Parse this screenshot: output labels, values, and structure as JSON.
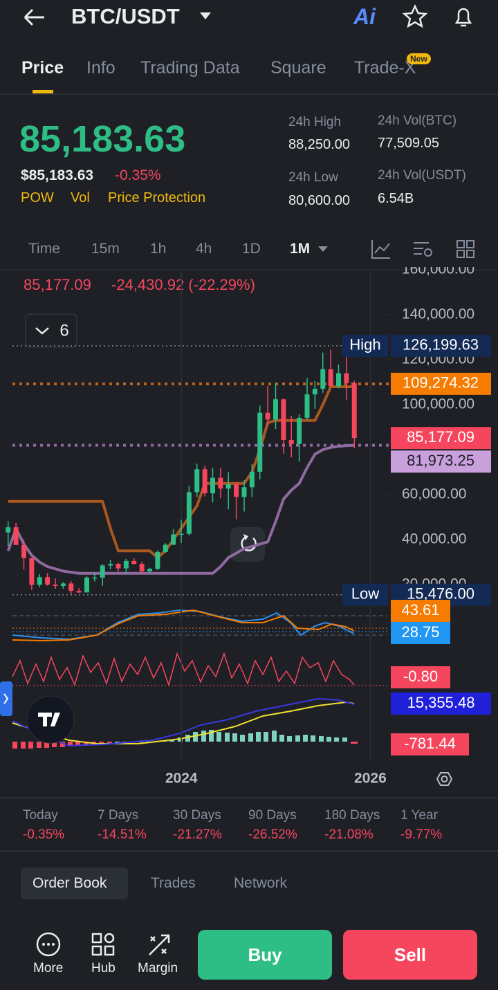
{
  "header": {
    "pair": "BTC/USDT",
    "ai": "Ai"
  },
  "tabs": [
    "Price",
    "Info",
    "Trading Data",
    "Square",
    "Trade-X"
  ],
  "tab_badge": "New",
  "price": {
    "last": "85,183.63",
    "usd": "$85,183.63",
    "change": "-0.35%",
    "tags": [
      "POW",
      "Vol",
      "Price Protection"
    ]
  },
  "stats": [
    {
      "label": "24h High",
      "value": "88,250.00"
    },
    {
      "label": "24h Vol(BTC)",
      "value": "77,509.05"
    },
    {
      "label": "24h Low",
      "value": "80,600.00"
    },
    {
      "label": "24h Vol(USDT)",
      "value": "6.54B"
    }
  ],
  "intervals": [
    "Time",
    "15m",
    "1h",
    "4h",
    "1D",
    "1M"
  ],
  "chart_data": {
    "type": "candlestick",
    "info": {
      "close": "85,177.09",
      "change": "-24,430.92 (-22.29%)"
    },
    "indicator_count": "6",
    "opens": [
      43200,
      45500,
      37600,
      31800,
      19900,
      23300,
      20000,
      19400,
      20500,
      17200,
      16500,
      23100,
      23100,
      28500,
      29200,
      27200,
      30500,
      29200,
      25900,
      27000,
      34500,
      37700,
      42300,
      42600,
      61100,
      71300,
      60600,
      67500,
      62700,
      64600,
      59000,
      63300,
      70200,
      96400,
      93400,
      102400,
      84300,
      82500,
      94200,
      104600,
      107100,
      115800,
      108200,
      114000,
      109600
    ],
    "highs": [
      48200,
      47400,
      40000,
      31900,
      24700,
      25200,
      22800,
      21100,
      21500,
      18400,
      23900,
      25300,
      29200,
      31000,
      29800,
      31400,
      31800,
      30200,
      27500,
      35200,
      38400,
      44700,
      48900,
      64000,
      73800,
      72800,
      72000,
      72000,
      70000,
      65600,
      66500,
      73600,
      99600,
      108400,
      109600,
      102800,
      95000,
      95800,
      111900,
      110500,
      123200,
      124500,
      117900,
      126199.63,
      110600
    ],
    "lows": [
      37200,
      37700,
      26700,
      17600,
      18800,
      19500,
      18100,
      18200,
      15476,
      16300,
      16500,
      21400,
      19500,
      26900,
      25800,
      24800,
      28900,
      25100,
      24900,
      26500,
      34100,
      37600,
      38500,
      41900,
      59000,
      59200,
      56500,
      58400,
      53500,
      49000,
      52500,
      58900,
      66800,
      90500,
      89200,
      78200,
      76600,
      74600,
      93400,
      98200,
      105300,
      108100,
      107300,
      102000,
      80600
    ],
    "closes": [
      45500,
      37600,
      31800,
      19900,
      23300,
      20000,
      19400,
      20500,
      17200,
      16500,
      23100,
      23100,
      28500,
      29200,
      27200,
      30500,
      29200,
      25900,
      27000,
      34500,
      37700,
      42300,
      42600,
      61100,
      71300,
      60600,
      67500,
      62700,
      64600,
      59000,
      63300,
      70200,
      96400,
      93400,
      102400,
      84300,
      82500,
      94200,
      104600,
      107100,
      115800,
      108200,
      114000,
      109600,
      85177.09
    ],
    "up_color": "#2ebd85",
    "down_color": "#f6465d",
    "overlays": [
      {
        "color": "#a9581f",
        "values": [
          57000,
          57000,
          57000,
          57000,
          57000,
          57000,
          57000,
          57000,
          57000,
          57000,
          57000,
          57000,
          57000,
          45000,
          35000,
          35000,
          35000,
          35000,
          35000,
          32000,
          35000,
          40000,
          45000,
          50000,
          55000,
          65000,
          65000,
          65000,
          65000,
          65000,
          65000,
          70000,
          80000,
          92000,
          93000,
          93000,
          93000,
          93000,
          93000,
          93000,
          100000,
          108000,
          108000,
          108000,
          108000
        ]
      },
      {
        "color": "#8e6a9e",
        "values": [
          35000,
          45000,
          38000,
          33000,
          30000,
          28000,
          27000,
          26000,
          25500,
          25000,
          25000,
          25000,
          25000,
          25000,
          25000,
          25000,
          25000,
          25000,
          25000,
          25000,
          25000,
          25000,
          25000,
          25000,
          25000,
          25000,
          25000,
          28000,
          32000,
          34000,
          36000,
          37000,
          38000,
          39000,
          48000,
          58000,
          62000,
          65000,
          72000,
          78000,
          80000,
          81000,
          81500,
          81800,
          81973.25
        ]
      }
    ],
    "ylim": [
      12000,
      160000
    ],
    "yticks": [
      {
        "value": 160000,
        "label": "160,000.00"
      },
      {
        "value": 140000,
        "label": "140,000.00"
      },
      {
        "value": 120000,
        "label": "120,000.00"
      },
      {
        "value": 100000,
        "label": "100,000.00"
      },
      {
        "value": 60000,
        "label": "60,000.00"
      },
      {
        "value": 40000,
        "label": "40,000.00"
      },
      {
        "value": 20000,
        "label": "20,000.00"
      }
    ],
    "xlim": [
      2022.08,
      2026.18
    ],
    "xticks": [
      2024,
      2026
    ],
    "grid": false,
    "markers": [
      {
        "label": "High",
        "value": 126199.63,
        "value_label": "126,199.63",
        "color": "#132a55",
        "line_color": "#7d8590"
      },
      {
        "value": 109274.32,
        "value_label": "109,274.32",
        "color": "#f57c00",
        "line_color": "#c0641a"
      },
      {
        "value": 85177.09,
        "value_label": "85,177.09",
        "color": "#f6465d"
      },
      {
        "value": 81973.25,
        "value_label": "81,973.25",
        "color": "#c9a0dc",
        "line_color": "#8e6a9e"
      },
      {
        "label": "Low",
        "value": 15476,
        "value_label": "15,476.00",
        "color": "#132a55",
        "line_color": "#7d8590"
      }
    ],
    "indicator_labels": [
      {
        "text": "43.61",
        "color": "#f57c00"
      },
      {
        "text": "28.75",
        "color": "#2196f3"
      },
      {
        "text": "-0.80",
        "color": "#f6465d"
      },
      {
        "text": "15,355.48",
        "color": "#2020d8"
      },
      {
        "text": "-781.44",
        "color": "#f6465d"
      }
    ]
  },
  "performance": [
    {
      "period": "Today",
      "change": "-0.35%"
    },
    {
      "period": "7 Days",
      "change": "-14.51%"
    },
    {
      "period": "30 Days",
      "change": "-21.27%"
    },
    {
      "period": "90 Days",
      "change": "-26.52%"
    },
    {
      "period": "180 Days",
      "change": "-21.08%"
    },
    {
      "period": "1 Year",
      "change": "-9.77%"
    }
  ],
  "bottom_tabs": [
    "Order Book",
    "Trades",
    "Network"
  ],
  "nav": [
    "More",
    "Hub",
    "Margin"
  ],
  "actions": {
    "buy": "Buy",
    "sell": "Sell"
  }
}
